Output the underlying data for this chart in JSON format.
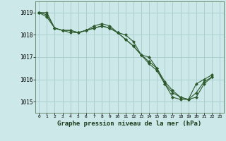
{
  "background_color": "#cce8e8",
  "grid_color": "#aacece",
  "line_color": "#2d5a2d",
  "marker_color": "#2d5a2d",
  "xlabel": "Graphe pression niveau de la mer (hPa)",
  "xlabel_fontsize": 6.5,
  "ylim": [
    1014.5,
    1019.5
  ],
  "xlim": [
    -0.5,
    23.5
  ],
  "yticks": [
    1015,
    1016,
    1017,
    1018,
    1019
  ],
  "xticks": [
    0,
    1,
    2,
    3,
    4,
    5,
    6,
    7,
    8,
    9,
    10,
    11,
    12,
    13,
    14,
    15,
    16,
    17,
    18,
    19,
    20,
    21,
    22,
    23
  ],
  "series": [
    [
      1019.0,
      1019.0,
      1018.3,
      1018.2,
      1018.2,
      1018.1,
      1018.2,
      1018.4,
      1018.5,
      1018.4,
      1018.1,
      1018.0,
      1017.7,
      1017.1,
      1017.0,
      1016.5,
      1015.8,
      1015.2,
      1015.1,
      1015.1,
      1015.2,
      1015.8,
      1016.1,
      null
    ],
    [
      1019.0,
      1018.9,
      1018.3,
      1018.2,
      1018.2,
      1018.1,
      1018.2,
      1018.3,
      1018.4,
      1018.3,
      1018.1,
      1017.8,
      1017.5,
      1017.1,
      1016.8,
      1016.5,
      1015.9,
      1015.5,
      1015.2,
      1015.1,
      1015.8,
      1016.0,
      1016.2,
      null
    ],
    [
      1019.0,
      1018.8,
      1018.3,
      1018.2,
      1018.1,
      1018.1,
      1018.2,
      1018.3,
      1018.4,
      1018.3,
      1018.1,
      1017.8,
      1017.5,
      1017.1,
      1016.7,
      1016.4,
      1015.8,
      1015.4,
      1015.2,
      1015.1,
      1015.4,
      1015.9,
      1016.1,
      null
    ]
  ]
}
